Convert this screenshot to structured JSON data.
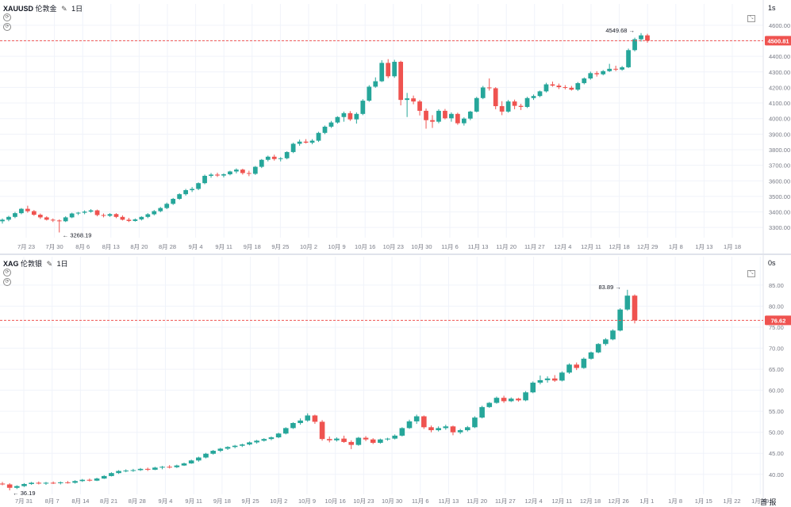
{
  "colors": {
    "up": "#26a69a",
    "down": "#ef5350",
    "price_line": "#ef5350",
    "grid": "#f0f3fa",
    "axis_text": "#787b86"
  },
  "panes": [
    {
      "symbol": "XAUUSD",
      "name": "伦敦金",
      "interval": "1日",
      "interval_tag": "1s",
      "right_icon": "⤡",
      "last_price": "4500.81",
      "high_label": "4549.68",
      "low_label": "3268.19",
      "y_ticks": [
        "4600.00",
        "4500.00",
        "4400.00",
        "4300.00",
        "4200.00",
        "4100.00",
        "4000.00",
        "3900.00",
        "3800.00",
        "3700.00",
        "3600.00",
        "3500.00",
        "3400.00",
        "3300.00"
      ],
      "x_ticks": [
        "7月 23",
        "7月 30",
        "8月 6",
        "8月 13",
        "8月 20",
        "8月 28",
        "9月 4",
        "9月 11",
        "9月 18",
        "9月 25",
        "10月 2",
        "10月 9",
        "10月 16",
        "10月 23",
        "10月 30",
        "11月 6",
        "11月 13",
        "11月 20",
        "11月 27",
        "12月 4",
        "12月 11",
        "12月 18",
        "12月 29",
        "1月 8",
        "1月 13",
        "1月 18"
      ]
    },
    {
      "symbol": "XAG",
      "name": "伦敦银",
      "interval": "1日",
      "interval_tag": "0s",
      "right_icon": "⤡",
      "last_price": "76.62",
      "high_label": "83.89",
      "low_label": "36.19",
      "y_ticks": [
        "85.00",
        "80.00",
        "75.00",
        "70.00",
        "65.00",
        "60.00",
        "55.00",
        "50.00",
        "45.00",
        "40.00"
      ],
      "x_ticks": [
        "7月 31",
        "8月 7",
        "8月 14",
        "8月 21",
        "8月 28",
        "9月 4",
        "9月 11",
        "9月 18",
        "9月 25",
        "10月 2",
        "10月 9",
        "10月 16",
        "10月 23",
        "10月 30",
        "11月 6",
        "11月 13",
        "11月 20",
        "11月 27",
        "12月 4",
        "12月 11",
        "12月 18",
        "12月 26",
        "1月 1",
        "1月 8",
        "1月 15",
        "1月 22",
        "1月 29"
      ],
      "corner_label": "首 报"
    }
  ],
  "chart_data": [
    {
      "type": "candlestick",
      "title": "XAUUSD 伦敦金 · 1日",
      "y_range": [
        3255,
        4635
      ],
      "last_price": 4500.81,
      "ohlc": [
        [
          3340,
          3358,
          3325,
          3350
        ],
        [
          3350,
          3375,
          3340,
          3368
        ],
        [
          3368,
          3400,
          3360,
          3392
        ],
        [
          3392,
          3425,
          3385,
          3420
        ],
        [
          3420,
          3440,
          3395,
          3405
        ],
        [
          3405,
          3412,
          3375,
          3382
        ],
        [
          3382,
          3390,
          3355,
          3365
        ],
        [
          3365,
          3372,
          3345,
          3350
        ],
        [
          3350,
          3358,
          3335,
          3345
        ],
        [
          3345,
          3352,
          3268,
          3340
        ],
        [
          3340,
          3372,
          3335,
          3365
        ],
        [
          3365,
          3395,
          3360,
          3390
        ],
        [
          3390,
          3400,
          3380,
          3395
        ],
        [
          3395,
          3410,
          3385,
          3402
        ],
        [
          3402,
          3418,
          3395,
          3410
        ],
        [
          3410,
          3415,
          3372,
          3380
        ],
        [
          3380,
          3390,
          3365,
          3375
        ],
        [
          3375,
          3392,
          3368,
          3386
        ],
        [
          3386,
          3392,
          3360,
          3368
        ],
        [
          3368,
          3378,
          3345,
          3350
        ],
        [
          3350,
          3362,
          3335,
          3342
        ],
        [
          3342,
          3358,
          3338,
          3352
        ],
        [
          3352,
          3372,
          3345,
          3368
        ],
        [
          3368,
          3392,
          3360,
          3385
        ],
        [
          3385,
          3412,
          3378,
          3405
        ],
        [
          3405,
          3432,
          3398,
          3425
        ],
        [
          3425,
          3460,
          3418,
          3452
        ],
        [
          3452,
          3490,
          3445,
          3484
        ],
        [
          3484,
          3520,
          3478,
          3514
        ],
        [
          3514,
          3548,
          3505,
          3540
        ],
        [
          3540,
          3560,
          3528,
          3548
        ],
        [
          3548,
          3590,
          3540,
          3585
        ],
        [
          3585,
          3640,
          3578,
          3632
        ],
        [
          3632,
          3650,
          3620,
          3640
        ],
        [
          3640,
          3652,
          3625,
          3634
        ],
        [
          3634,
          3648,
          3622,
          3642
        ],
        [
          3642,
          3665,
          3635,
          3660
        ],
        [
          3660,
          3680,
          3648,
          3672
        ],
        [
          3672,
          3678,
          3640,
          3650
        ],
        [
          3650,
          3665,
          3630,
          3645
        ],
        [
          3645,
          3695,
          3638,
          3690
        ],
        [
          3690,
          3740,
          3682,
          3735
        ],
        [
          3735,
          3762,
          3725,
          3755
        ],
        [
          3755,
          3768,
          3730,
          3740
        ],
        [
          3740,
          3752,
          3725,
          3745
        ],
        [
          3745,
          3790,
          3738,
          3785
        ],
        [
          3785,
          3845,
          3778,
          3838
        ],
        [
          3838,
          3865,
          3825,
          3852
        ],
        [
          3852,
          3868,
          3840,
          3845
        ],
        [
          3845,
          3868,
          3835,
          3858
        ],
        [
          3858,
          3915,
          3850,
          3908
        ],
        [
          3908,
          3955,
          3900,
          3948
        ],
        [
          3948,
          3985,
          3940,
          3975
        ],
        [
          3975,
          4015,
          3968,
          4010
        ],
        [
          4010,
          4045,
          3980,
          4035
        ],
        [
          4035,
          4048,
          3985,
          3995
        ],
        [
          3995,
          4040,
          3968,
          4030
        ],
        [
          4030,
          4125,
          4022,
          4115
        ],
        [
          4115,
          4215,
          4108,
          4205
        ],
        [
          4205,
          4265,
          4198,
          4240
        ],
        [
          4240,
          4375,
          4235,
          4358
        ],
        [
          4358,
          4382,
          4260,
          4272
        ],
        [
          4272,
          4378,
          4262,
          4365
        ],
        [
          4365,
          4372,
          4085,
          4120
        ],
        [
          4120,
          4165,
          4010,
          4130
        ],
        [
          4130,
          4148,
          4092,
          4110
        ],
        [
          4110,
          4120,
          4020,
          4050
        ],
        [
          4050,
          4065,
          3935,
          3990
        ],
        [
          3990,
          4022,
          3940,
          3980
        ],
        [
          3980,
          4060,
          3970,
          4050
        ],
        [
          4050,
          4062,
          3995,
          4002
        ],
        [
          4002,
          4040,
          3980,
          4030
        ],
        [
          4030,
          4038,
          3960,
          3970
        ],
        [
          3970,
          4008,
          3955,
          4000
        ],
        [
          4000,
          4050,
          3990,
          4045
        ],
        [
          4045,
          4140,
          4040,
          4132
        ],
        [
          4132,
          4210,
          4125,
          4200
        ],
        [
          4200,
          4258,
          4180,
          4195
        ],
        [
          4195,
          4202,
          4060,
          4080
        ],
        [
          4080,
          4112,
          4022,
          4045
        ],
        [
          4045,
          4120,
          4038,
          4110
        ],
        [
          4110,
          4122,
          4060,
          4082
        ],
        [
          4082,
          4095,
          4055,
          4075
        ],
        [
          4075,
          4140,
          4068,
          4132
        ],
        [
          4132,
          4155,
          4120,
          4145
        ],
        [
          4145,
          4180,
          4138,
          4175
        ],
        [
          4175,
          4230,
          4168,
          4220
        ],
        [
          4220,
          4238,
          4205,
          4212
        ],
        [
          4212,
          4225,
          4190,
          4202
        ],
        [
          4202,
          4215,
          4188,
          4198
        ],
        [
          4198,
          4210,
          4180,
          4186
        ],
        [
          4186,
          4235,
          4178,
          4228
        ],
        [
          4228,
          4265,
          4220,
          4258
        ],
        [
          4258,
          4302,
          4250,
          4292
        ],
        [
          4292,
          4305,
          4270,
          4285
        ],
        [
          4285,
          4312,
          4278,
          4305
        ],
        [
          4305,
          4352,
          4300,
          4320
        ],
        [
          4320,
          4340,
          4305,
          4315
        ],
        [
          4315,
          4338,
          4308,
          4330
        ],
        [
          4330,
          4450,
          4325,
          4440
        ],
        [
          4440,
          4520,
          4432,
          4510
        ],
        [
          4510,
          4549.68,
          4495,
          4535
        ],
        [
          4535,
          4545,
          4488,
          4500.81
        ]
      ]
    },
    {
      "type": "candlestick",
      "title": "XAG 伦敦银 · 1日",
      "y_range": [
        36,
        88
      ],
      "last_price": 76.62,
      "ohlc": [
        [
          37.8,
          38.2,
          37.4,
          37.6
        ],
        [
          37.6,
          37.9,
          36.19,
          36.8
        ],
        [
          36.8,
          37.4,
          36.5,
          37.2
        ],
        [
          37.2,
          37.9,
          37.0,
          37.7
        ],
        [
          37.7,
          38.2,
          37.5,
          38.0
        ],
        [
          38.0,
          38.3,
          37.6,
          37.8
        ],
        [
          37.8,
          38.2,
          37.5,
          38.0
        ],
        [
          38.0,
          38.3,
          37.7,
          37.9
        ],
        [
          37.9,
          38.3,
          37.6,
          38.1
        ],
        [
          38.1,
          38.4,
          37.8,
          38.0
        ],
        [
          38.0,
          38.6,
          37.8,
          38.4
        ],
        [
          38.4,
          38.9,
          38.2,
          38.7
        ],
        [
          38.7,
          39.0,
          38.3,
          38.5
        ],
        [
          38.5,
          39.2,
          38.4,
          39.0
        ],
        [
          39.0,
          39.8,
          38.9,
          39.6
        ],
        [
          39.6,
          40.5,
          39.5,
          40.3
        ],
        [
          40.3,
          41.0,
          40.1,
          40.8
        ],
        [
          40.8,
          41.2,
          40.5,
          40.9
        ],
        [
          40.9,
          41.3,
          40.6,
          41.0
        ],
        [
          41.0,
          41.5,
          40.8,
          41.3
        ],
        [
          41.3,
          41.6,
          40.8,
          41.1
        ],
        [
          41.1,
          41.8,
          41.0,
          41.6
        ],
        [
          41.6,
          42.0,
          41.2,
          41.8
        ],
        [
          41.8,
          42.2,
          41.4,
          41.7
        ],
        [
          41.7,
          42.3,
          41.5,
          42.1
        ],
        [
          42.1,
          42.8,
          42.0,
          42.6
        ],
        [
          42.6,
          43.5,
          42.5,
          43.3
        ],
        [
          43.3,
          44.2,
          43.0,
          44.0
        ],
        [
          44.0,
          45.1,
          43.8,
          44.9
        ],
        [
          44.9,
          45.8,
          44.7,
          45.6
        ],
        [
          45.6,
          46.3,
          45.3,
          46.1
        ],
        [
          46.1,
          46.7,
          45.8,
          46.5
        ],
        [
          46.5,
          47.0,
          46.2,
          46.8
        ],
        [
          46.8,
          47.3,
          46.5,
          47.1
        ],
        [
          47.1,
          47.8,
          46.9,
          47.6
        ],
        [
          47.6,
          48.2,
          47.3,
          48.0
        ],
        [
          48.0,
          48.6,
          47.8,
          48.4
        ],
        [
          48.4,
          49.0,
          48.1,
          48.8
        ],
        [
          48.8,
          49.9,
          48.6,
          49.7
        ],
        [
          49.7,
          51.2,
          49.5,
          51.0
        ],
        [
          51.0,
          52.4,
          50.8,
          52.2
        ],
        [
          52.2,
          53.3,
          51.8,
          52.8
        ],
        [
          52.8,
          54.5,
          52.5,
          54.0
        ],
        [
          54.0,
          54.2,
          52.0,
          52.5
        ],
        [
          52.5,
          52.9,
          48.0,
          48.4
        ],
        [
          48.4,
          49.0,
          47.6,
          48.1
        ],
        [
          48.1,
          48.8,
          47.8,
          48.5
        ],
        [
          48.5,
          49.2,
          47.5,
          47.7
        ],
        [
          47.7,
          48.1,
          46.0,
          47.0
        ],
        [
          47.0,
          48.9,
          46.8,
          48.7
        ],
        [
          48.7,
          49.1,
          47.9,
          48.3
        ],
        [
          48.3,
          48.6,
          47.2,
          47.5
        ],
        [
          47.5,
          48.5,
          47.3,
          48.3
        ],
        [
          48.3,
          48.7,
          48.0,
          48.5
        ],
        [
          48.5,
          49.5,
          48.3,
          49.2
        ],
        [
          49.2,
          51.2,
          49.0,
          51.0
        ],
        [
          51.0,
          53.0,
          50.8,
          52.6
        ],
        [
          52.6,
          54.2,
          52.0,
          53.8
        ],
        [
          53.8,
          54.0,
          50.8,
          51.2
        ],
        [
          51.2,
          51.6,
          50.0,
          50.5
        ],
        [
          50.5,
          51.4,
          50.2,
          51.0
        ],
        [
          51.0,
          51.8,
          50.6,
          51.4
        ],
        [
          51.4,
          51.6,
          49.3,
          50.0
        ],
        [
          50.0,
          50.8,
          49.6,
          50.5
        ],
        [
          50.5,
          51.5,
          50.2,
          51.2
        ],
        [
          51.2,
          53.8,
          51.0,
          53.5
        ],
        [
          53.5,
          56.3,
          53.3,
          56.0
        ],
        [
          56.0,
          57.2,
          55.8,
          57.0
        ],
        [
          57.0,
          58.5,
          56.8,
          58.2
        ],
        [
          58.2,
          58.7,
          57.0,
          57.4
        ],
        [
          57.4,
          58.3,
          57.2,
          58.0
        ],
        [
          58.0,
          58.2,
          57.3,
          57.6
        ],
        [
          57.6,
          59.8,
          57.4,
          59.5
        ],
        [
          59.5,
          62.1,
          59.3,
          61.8
        ],
        [
          61.8,
          63.5,
          61.4,
          62.4
        ],
        [
          62.4,
          63.3,
          61.8,
          62.8
        ],
        [
          62.8,
          63.6,
          62.0,
          62.3
        ],
        [
          62.3,
          64.5,
          62.1,
          64.2
        ],
        [
          64.2,
          66.4,
          63.9,
          66.1
        ],
        [
          66.1,
          66.6,
          64.8,
          65.3
        ],
        [
          65.3,
          67.8,
          65.1,
          67.5
        ],
        [
          67.5,
          69.2,
          67.3,
          69.0
        ],
        [
          69.0,
          71.2,
          68.8,
          71.0
        ],
        [
          71.0,
          72.4,
          70.6,
          72.1
        ],
        [
          72.1,
          74.5,
          71.9,
          74.2
        ],
        [
          74.2,
          79.5,
          74.0,
          79.2
        ],
        [
          79.2,
          83.89,
          78.9,
          82.5
        ],
        [
          82.5,
          82.8,
          75.9,
          76.62
        ]
      ]
    }
  ]
}
